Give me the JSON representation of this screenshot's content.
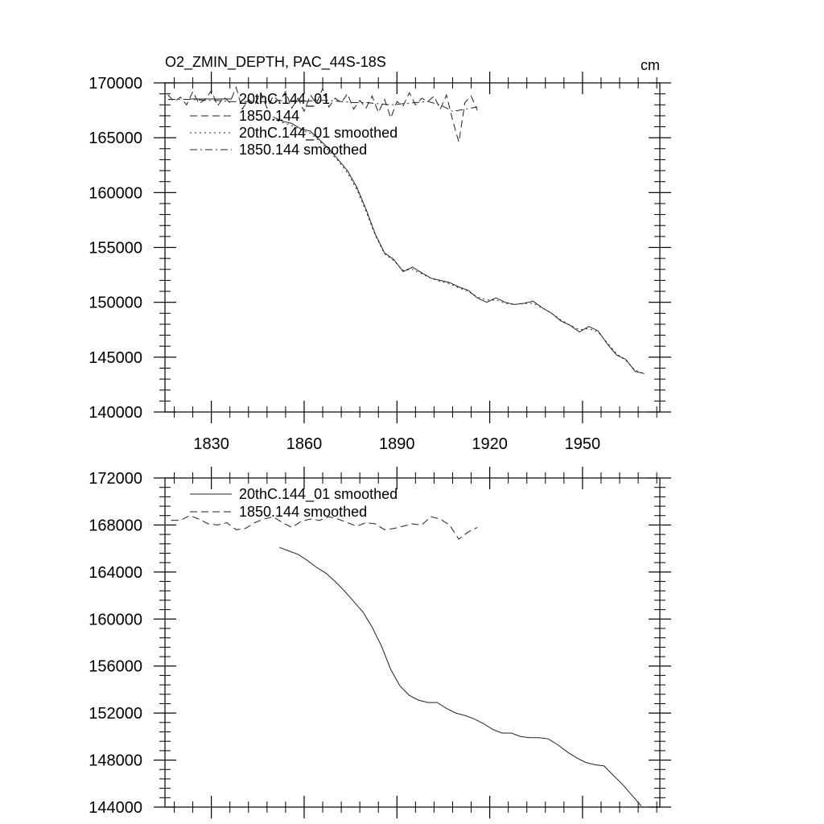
{
  "chart_data": [
    {
      "type": "line",
      "title": "O2_ZMIN_DEPTH, PAC_44S-18S",
      "units": "cm",
      "xlim": [
        1815,
        1975
      ],
      "ylim": [
        140000,
        170000
      ],
      "x_ticks": [
        1830,
        1860,
        1890,
        1920,
        1950
      ],
      "x_tick_labels": [
        "1830",
        "1860",
        "1890",
        "1920",
        "1950"
      ],
      "y_ticks": [
        140000,
        145000,
        150000,
        155000,
        160000,
        165000,
        170000
      ],
      "y_tick_labels": [
        "140000",
        "145000",
        "150000",
        "155000",
        "160000",
        "165000",
        "170000"
      ],
      "legend": [
        "20thC.144_01",
        "1850.144",
        "20thC.144_01 smoothed",
        "1850.144 smoothed"
      ],
      "series": [
        {
          "name": "20thC.144_01",
          "style": "solid",
          "x": [
            1850,
            1853,
            1856,
            1859,
            1862,
            1865,
            1868,
            1871,
            1874,
            1877,
            1880,
            1883,
            1886,
            1889,
            1892,
            1895,
            1898,
            1901,
            1904,
            1907,
            1910,
            1913,
            1916,
            1919,
            1922,
            1925,
            1928,
            1931,
            1934,
            1937,
            1940,
            1943,
            1946,
            1949,
            1952,
            1955,
            1958,
            1961,
            1964,
            1967,
            1970
          ],
          "values": [
            166900,
            166500,
            166300,
            165800,
            165600,
            164800,
            164000,
            163000,
            162000,
            160500,
            158500,
            156200,
            154500,
            153900,
            152800,
            153200,
            152700,
            152200,
            152000,
            151800,
            151400,
            151100,
            150400,
            150000,
            150400,
            150000,
            149800,
            149900,
            150100,
            149500,
            149000,
            148300,
            147900,
            147300,
            147800,
            147400,
            146200,
            145200,
            144800,
            143700,
            143500
          ]
        },
        {
          "name": "1850.144",
          "style": "dashed",
          "x": [
            1816,
            1818,
            1820,
            1822,
            1824,
            1826,
            1828,
            1830,
            1832,
            1834,
            1836,
            1838,
            1840,
            1842,
            1844,
            1846,
            1848,
            1850,
            1852,
            1854,
            1856,
            1858,
            1860,
            1862,
            1864,
            1866,
            1868,
            1870,
            1872,
            1874,
            1876,
            1878,
            1880,
            1882,
            1884,
            1886,
            1888,
            1890,
            1892,
            1894,
            1896,
            1898,
            1900,
            1902,
            1904,
            1906,
            1908,
            1910,
            1912,
            1914,
            1916
          ],
          "values": [
            168900,
            168300,
            168700,
            168000,
            169200,
            168100,
            168500,
            169300,
            167900,
            168700,
            168200,
            169600,
            167600,
            168500,
            168000,
            169100,
            167700,
            168800,
            168300,
            169200,
            167700,
            168600,
            167400,
            168900,
            168100,
            169500,
            167800,
            168600,
            168200,
            169000,
            167600,
            168400,
            167700,
            168800,
            167300,
            168500,
            166800,
            168300,
            167900,
            169100,
            168000,
            168600,
            168300,
            168800,
            167600,
            168900,
            166600,
            164600,
            168200,
            168800,
            167500
          ]
        },
        {
          "name": "20thC.144_01 smoothed",
          "style": "dotted",
          "x": [
            1850,
            1853,
            1856,
            1859,
            1862,
            1865,
            1868,
            1871,
            1874,
            1877,
            1880,
            1883,
            1886,
            1889,
            1892,
            1895,
            1898,
            1901,
            1904,
            1907,
            1910,
            1913,
            1916,
            1919,
            1922,
            1925,
            1928,
            1931,
            1934,
            1937,
            1940,
            1943,
            1946,
            1949,
            1952,
            1955,
            1958,
            1961,
            1964,
            1967,
            1970
          ],
          "values": [
            166700,
            166400,
            166100,
            165700,
            165400,
            164700,
            163800,
            162900,
            161800,
            160300,
            158300,
            156100,
            154400,
            153800,
            152900,
            153000,
            152600,
            152200,
            151900,
            151700,
            151300,
            151000,
            150500,
            150200,
            150200,
            149900,
            149800,
            149900,
            149900,
            149500,
            149000,
            148400,
            147900,
            147500,
            147600,
            147300,
            146300,
            145300,
            144700,
            143800,
            143500
          ]
        },
        {
          "name": "1850.144 smoothed",
          "style": "dashdot",
          "x": [
            1816,
            1820,
            1824,
            1828,
            1832,
            1836,
            1840,
            1844,
            1848,
            1852,
            1856,
            1860,
            1864,
            1868,
            1872,
            1876,
            1880,
            1884,
            1888,
            1892,
            1896,
            1900,
            1904,
            1908,
            1912,
            1916
          ],
          "values": [
            168500,
            168500,
            168500,
            168400,
            168400,
            168300,
            168300,
            168300,
            168300,
            168400,
            168300,
            168300,
            168400,
            168400,
            168300,
            168200,
            168200,
            168100,
            168000,
            168100,
            168200,
            168300,
            168000,
            167400,
            167600,
            167800
          ]
        }
      ]
    },
    {
      "type": "line",
      "xlim": [
        1815,
        1975
      ],
      "ylim": [
        144000,
        172000
      ],
      "x_ticks": [
        1830,
        1860,
        1890,
        1920,
        1950
      ],
      "y_ticks": [
        144000,
        148000,
        152000,
        156000,
        160000,
        164000,
        168000,
        172000
      ],
      "y_tick_labels": [
        "144000",
        "148000",
        "152000",
        "156000",
        "160000",
        "164000",
        "168000",
        "172000"
      ],
      "legend": [
        "20thC.144_01 smoothed",
        "1850.144 smoothed"
      ],
      "series": [
        {
          "name": "20thC.144_01 smoothed",
          "style": "solid",
          "x": [
            1852,
            1855,
            1858,
            1861,
            1864,
            1867,
            1870,
            1873,
            1876,
            1879,
            1882,
            1885,
            1888,
            1891,
            1894,
            1897,
            1900,
            1903,
            1906,
            1909,
            1912,
            1915,
            1918,
            1921,
            1924,
            1927,
            1930,
            1933,
            1936,
            1939,
            1942,
            1945,
            1948,
            1951,
            1954,
            1957,
            1960,
            1963,
            1966,
            1969
          ],
          "values": [
            166100,
            165800,
            165500,
            165000,
            164400,
            163900,
            163200,
            162400,
            161500,
            160600,
            159300,
            157700,
            155700,
            154300,
            153500,
            153100,
            152900,
            152900,
            152400,
            152000,
            151800,
            151500,
            151100,
            150600,
            150300,
            150300,
            150000,
            149900,
            149900,
            149800,
            149300,
            148700,
            148200,
            147800,
            147600,
            147500,
            146700,
            145900,
            145000,
            144100
          ]
        },
        {
          "name": "1850.144 smoothed",
          "style": "dashed",
          "x": [
            1817,
            1820,
            1823,
            1826,
            1829,
            1832,
            1835,
            1838,
            1841,
            1844,
            1847,
            1850,
            1853,
            1856,
            1859,
            1862,
            1865,
            1868,
            1871,
            1874,
            1877,
            1880,
            1883,
            1886,
            1889,
            1892,
            1895,
            1898,
            1901,
            1904,
            1907,
            1910,
            1913,
            1916
          ],
          "values": [
            168400,
            168400,
            168800,
            168500,
            168100,
            168000,
            168200,
            167600,
            167700,
            168200,
            168500,
            168700,
            168200,
            167800,
            168300,
            168500,
            168400,
            168700,
            168500,
            168200,
            167900,
            168200,
            168100,
            167600,
            167700,
            167900,
            168100,
            168000,
            168700,
            168500,
            168000,
            166800,
            167400,
            167800
          ]
        }
      ]
    }
  ]
}
